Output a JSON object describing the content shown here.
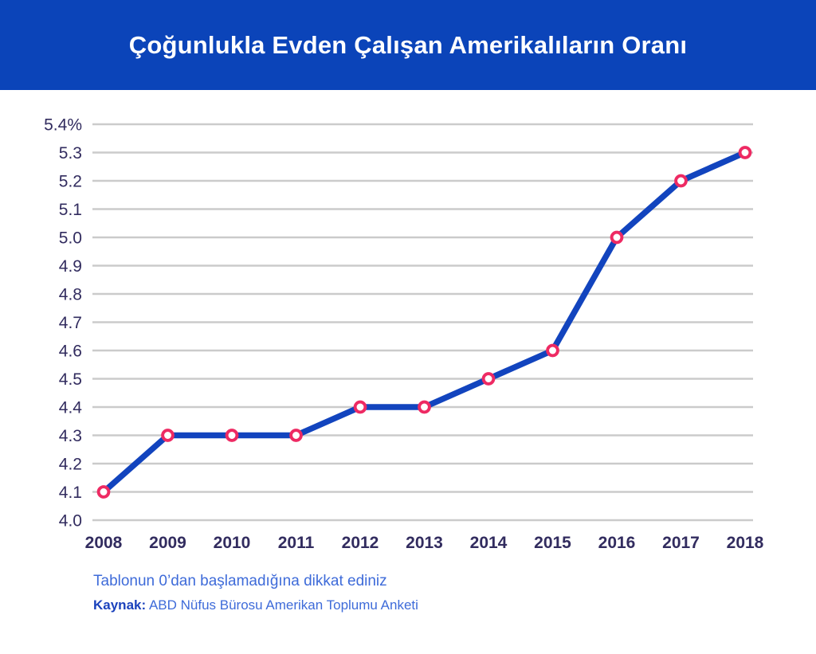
{
  "header": {
    "title": "Çoğunlukla Evden Çalışan Amerikalıların Oranı",
    "bg_color": "#0B44B9",
    "text_color": "#FFFFFF"
  },
  "chart_data": {
    "type": "line",
    "title": "Çoğunlukla Evden Çalışan Amerikalıların Oranı",
    "categories": [
      "2008",
      "2009",
      "2010",
      "2011",
      "2012",
      "2013",
      "2014",
      "2015",
      "2016",
      "2017",
      "2018"
    ],
    "values": [
      4.1,
      4.3,
      4.3,
      4.3,
      4.4,
      4.4,
      4.5,
      4.6,
      5.0,
      5.2,
      5.3
    ],
    "ylim": [
      4.0,
      5.4
    ],
    "ytick_values": [
      5.4,
      5.3,
      5.2,
      5.1,
      5.0,
      4.9,
      4.8,
      4.7,
      4.6,
      4.5,
      4.4,
      4.3,
      4.2,
      4.1,
      4.0
    ],
    "ytick_labels": [
      "5.4%",
      "5.3",
      "5.2",
      "5.1",
      "5.0",
      "4.9",
      "4.8",
      "4.7",
      "4.6",
      "4.5",
      "4.4",
      "4.3",
      "4.2",
      "4.1",
      "4.0"
    ],
    "xlabel": "",
    "ylabel": "",
    "grid": "horizontal",
    "legend": "none",
    "colors": {
      "line": "#1244BE",
      "marker_ring": "#EE2A63",
      "marker_fill": "#FFFFFF",
      "gridline": "#CBCBCB",
      "tick_text": "#322C5F"
    }
  },
  "footer": {
    "note": "Tablonun 0’dan başlamadığına dikkat ediniz",
    "note_color": "#3E6BD9",
    "source_label": "Kaynak:",
    "source_label_color": "#1B42BC",
    "source_text": "ABD Nüfus Bürosu Amerikan Toplumu Anketi",
    "source_text_color": "#3E6BD9"
  }
}
